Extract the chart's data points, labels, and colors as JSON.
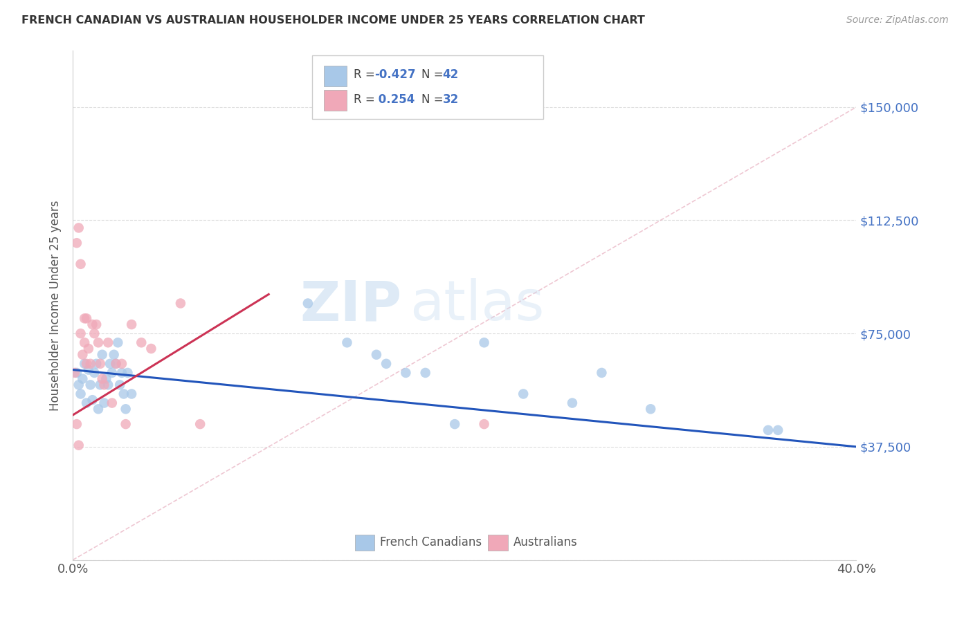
{
  "title": "FRENCH CANADIAN VS AUSTRALIAN HOUSEHOLDER INCOME UNDER 25 YEARS CORRELATION CHART",
  "source": "Source: ZipAtlas.com",
  "ylabel": "Householder Income Under 25 years",
  "xlim": [
    0.0,
    0.4
  ],
  "ylim": [
    0,
    168750
  ],
  "xticks": [
    0.0,
    0.05,
    0.1,
    0.15,
    0.2,
    0.25,
    0.3,
    0.35,
    0.4
  ],
  "ytick_values": [
    0,
    37500,
    75000,
    112500,
    150000
  ],
  "ytick_labels": [
    "",
    "$37,500",
    "$75,000",
    "$112,500",
    "$150,000"
  ],
  "watermark_zip": "ZIP",
  "watermark_atlas": "atlas",
  "legend_label1": "French Canadians",
  "legend_label2": "Australians",
  "R1": -0.427,
  "N1": 42,
  "R2": 0.254,
  "N2": 32,
  "blue_color": "#a8c8e8",
  "pink_color": "#f0a8b8",
  "blue_line_color": "#2255bb",
  "pink_line_color": "#cc3355",
  "diag_line_color": "#cccccc",
  "blue_scatter_x": [
    0.002,
    0.003,
    0.004,
    0.005,
    0.006,
    0.007,
    0.008,
    0.009,
    0.01,
    0.011,
    0.012,
    0.013,
    0.014,
    0.015,
    0.016,
    0.017,
    0.018,
    0.019,
    0.02,
    0.021,
    0.022,
    0.023,
    0.024,
    0.025,
    0.026,
    0.027,
    0.028,
    0.03,
    0.12,
    0.14,
    0.155,
    0.16,
    0.17,
    0.18,
    0.195,
    0.21,
    0.23,
    0.255,
    0.27,
    0.295,
    0.355,
    0.36
  ],
  "blue_scatter_y": [
    62000,
    58000,
    55000,
    60000,
    65000,
    52000,
    63000,
    58000,
    53000,
    62000,
    65000,
    50000,
    58000,
    68000,
    52000,
    60000,
    58000,
    65000,
    62000,
    68000,
    65000,
    72000,
    58000,
    62000,
    55000,
    50000,
    62000,
    55000,
    85000,
    72000,
    68000,
    65000,
    62000,
    62000,
    45000,
    72000,
    55000,
    52000,
    62000,
    50000,
    43000,
    43000
  ],
  "pink_scatter_x": [
    0.001,
    0.002,
    0.003,
    0.004,
    0.004,
    0.005,
    0.006,
    0.006,
    0.007,
    0.007,
    0.008,
    0.009,
    0.01,
    0.011,
    0.012,
    0.013,
    0.014,
    0.015,
    0.016,
    0.018,
    0.02,
    0.022,
    0.025,
    0.027,
    0.03,
    0.035,
    0.04,
    0.055,
    0.065,
    0.002,
    0.003,
    0.21
  ],
  "pink_scatter_y": [
    62000,
    105000,
    110000,
    98000,
    75000,
    68000,
    80000,
    72000,
    80000,
    65000,
    70000,
    65000,
    78000,
    75000,
    78000,
    72000,
    65000,
    60000,
    58000,
    72000,
    52000,
    65000,
    65000,
    45000,
    78000,
    72000,
    70000,
    85000,
    45000,
    45000,
    38000,
    45000
  ]
}
